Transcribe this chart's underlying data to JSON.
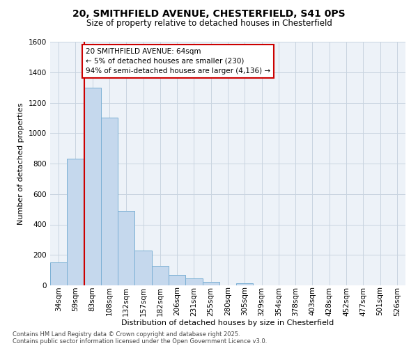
{
  "title_line1": "20, SMITHFIELD AVENUE, CHESTERFIELD, S41 0PS",
  "title_line2": "Size of property relative to detached houses in Chesterfield",
  "xlabel": "Distribution of detached houses by size in Chesterfield",
  "ylabel": "Number of detached properties",
  "categories": [
    "34sqm",
    "59sqm",
    "83sqm",
    "108sqm",
    "132sqm",
    "157sqm",
    "182sqm",
    "206sqm",
    "231sqm",
    "255sqm",
    "280sqm",
    "305sqm",
    "329sqm",
    "354sqm",
    "378sqm",
    "403sqm",
    "428sqm",
    "452sqm",
    "477sqm",
    "501sqm",
    "526sqm"
  ],
  "values": [
    150,
    830,
    1300,
    1100,
    490,
    230,
    130,
    70,
    45,
    25,
    0,
    15,
    0,
    0,
    0,
    0,
    0,
    0,
    0,
    0,
    0
  ],
  "bar_color": "#c5d8ed",
  "bar_edge_color": "#7aafd4",
  "vline_color": "#cc0000",
  "vline_pos": 1.5,
  "annotation_text": "20 SMITHFIELD AVENUE: 64sqm\n← 5% of detached houses are smaller (230)\n94% of semi-detached houses are larger (4,136) →",
  "annotation_box_edgecolor": "#cc0000",
  "ylim_max": 1600,
  "yticks": [
    0,
    200,
    400,
    600,
    800,
    1000,
    1200,
    1400,
    1600
  ],
  "grid_color": "#c8d4e0",
  "bg_color": "#edf2f8",
  "footer": "Contains HM Land Registry data © Crown copyright and database right 2025.\nContains public sector information licensed under the Open Government Licence v3.0.",
  "fig_width": 6.0,
  "fig_height": 5.0,
  "title_fontsize": 10,
  "subtitle_fontsize": 8.5,
  "xlabel_fontsize": 8,
  "ylabel_fontsize": 8,
  "tick_fontsize": 7.5,
  "annotation_fontsize": 7.5,
  "footer_fontsize": 6
}
